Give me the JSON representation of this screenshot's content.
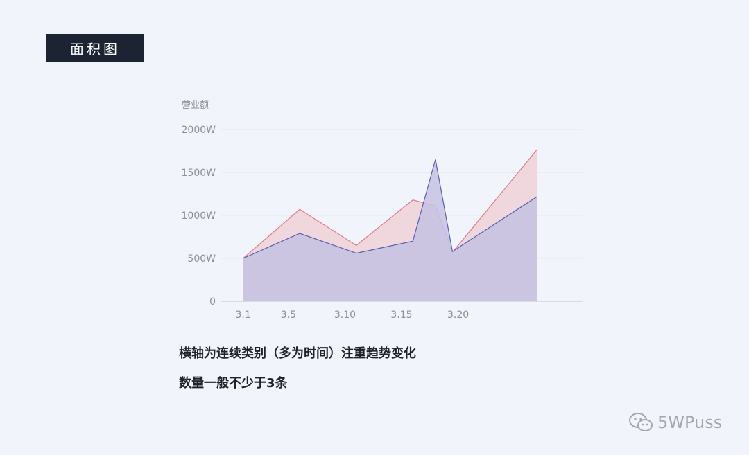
{
  "header": {
    "title": "面积图"
  },
  "chart_data": {
    "type": "area",
    "ylabel": "营业额",
    "y_ticks": [
      "0",
      "500W",
      "1000W",
      "1500W",
      "2000W"
    ],
    "y_tick_values": [
      0,
      500,
      1000,
      1500,
      2000
    ],
    "ylim": [
      0,
      2000
    ],
    "x_tick_labels": [
      "3.1",
      "3.5",
      "3.10",
      "3.15",
      "3.20"
    ],
    "x_tick_values": [
      1,
      5,
      10,
      15,
      20
    ],
    "xlim": [
      -1,
      31
    ],
    "grid": true,
    "x": [
      1,
      6,
      11,
      16,
      18,
      19.5,
      27
    ],
    "series": [
      {
        "color": "#e07a86",
        "fill": "#f0d4d9",
        "values": [
          500,
          1070,
          650,
          1180,
          1110,
          570,
          1770
        ]
      },
      {
        "color": "#5a5fb0",
        "fill": "#c6c2e3",
        "values": [
          500,
          790,
          560,
          700,
          1650,
          580,
          1220
        ]
      }
    ]
  },
  "captions": [
    "横轴为连续类别（多为时间）注重趋势变化",
    "数量一般不少于3条"
  ],
  "watermark": {
    "text": "5WPuss",
    "icon": "wechat-icon"
  }
}
